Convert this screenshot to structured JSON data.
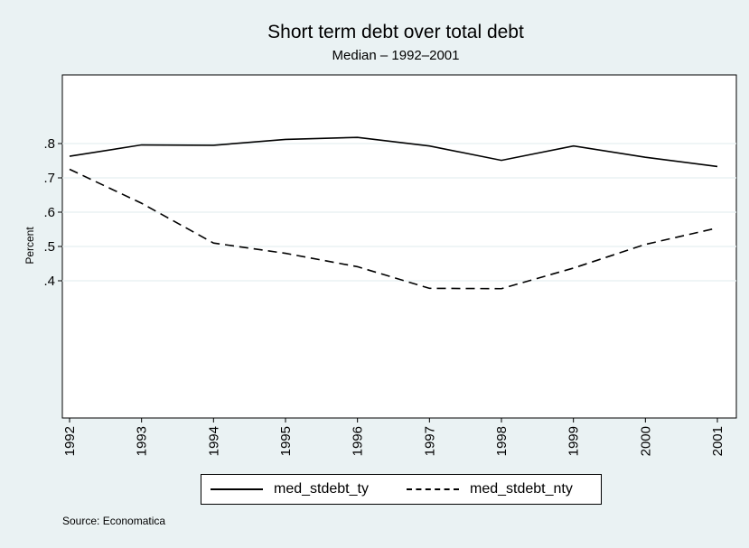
{
  "chart_data": {
    "type": "line",
    "title": "Short term debt over total debt",
    "subtitle": "Median – 1992–2001",
    "ylabel": "Percent",
    "xlabel": "",
    "ylim": [
      0.0,
      1.0
    ],
    "y_ticks": [
      ".4",
      ".5",
      ".6",
      ".7",
      ".8"
    ],
    "y_tick_values": [
      0.4,
      0.5,
      0.6,
      0.7,
      0.8
    ],
    "x": [
      "1992",
      "1993",
      "1994",
      "1995",
      "1996",
      "1997",
      "1998",
      "1999",
      "2000",
      "2001"
    ],
    "series": [
      {
        "name": "med_stdebt_ty",
        "style": "solid",
        "values": [
          0.763,
          0.796,
          0.795,
          0.812,
          0.818,
          0.793,
          0.751,
          0.793,
          0.76,
          0.733
        ]
      },
      {
        "name": "med_stdebt_nty",
        "style": "dashed",
        "values": [
          0.725,
          0.626,
          0.51,
          0.48,
          0.441,
          0.378,
          0.377,
          0.437,
          0.506,
          0.554
        ]
      }
    ],
    "grid": true,
    "legend_position": "bottom",
    "source": "Source: Economatica",
    "colors": {
      "background": "#eaf2f3",
      "plot": "#ffffff",
      "grid": "#eaf2f3",
      "line": "#000000"
    }
  }
}
